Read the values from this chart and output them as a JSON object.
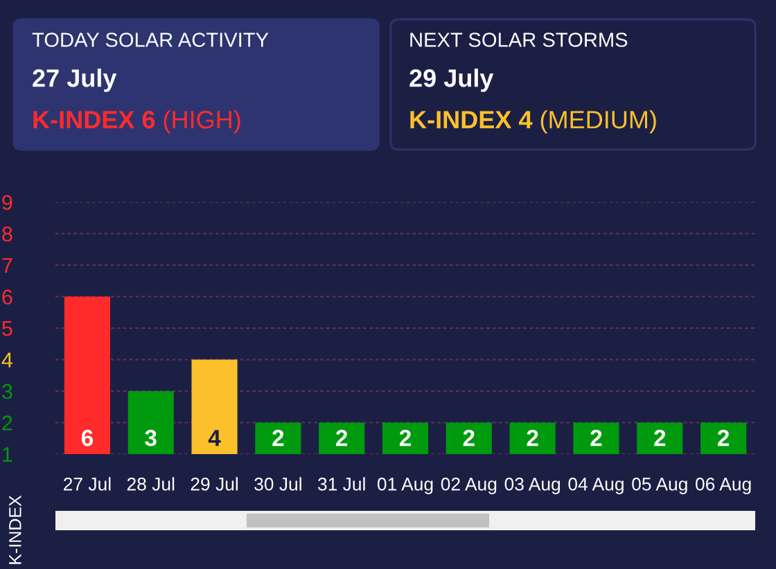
{
  "chart_data": [
    {
      "type": "other",
      "title": "TODAY SOLAR ACTIVITY",
      "subtitle": "27 July",
      "annotations": [
        "K-INDEX 6",
        "(HIGH)"
      ]
    },
    {
      "type": "other",
      "title": "NEXT SOLAR STORMS",
      "subtitle": "29 July",
      "annotations": [
        "K-INDEX 4",
        "(MEDIUM)"
      ]
    },
    {
      "type": "bar",
      "ylabel": "K-INDEX",
      "categories": [
        "27 Jul",
        "28 Jul",
        "29 Jul",
        "30 Jul",
        "31 Jul",
        "01 Aug",
        "02 Aug",
        "03 Aug",
        "04 Aug",
        "05 Aug",
        "06 Aug"
      ],
      "values": [
        6,
        3,
        4,
        2,
        2,
        2,
        2,
        2,
        2,
        2,
        2
      ],
      "colors": [
        "#ff2b2b",
        "#009a0e",
        "#fcc02b",
        "#009a0e",
        "#009a0e",
        "#009a0e",
        "#009a0e",
        "#009a0e",
        "#009a0e",
        "#009a0e",
        "#009a0e"
      ],
      "ylim": [
        1,
        9
      ],
      "yticks": [
        1,
        2,
        3,
        4,
        5,
        6,
        7,
        8,
        9
      ],
      "grid": "y",
      "data_labels": true
    }
  ]
}
